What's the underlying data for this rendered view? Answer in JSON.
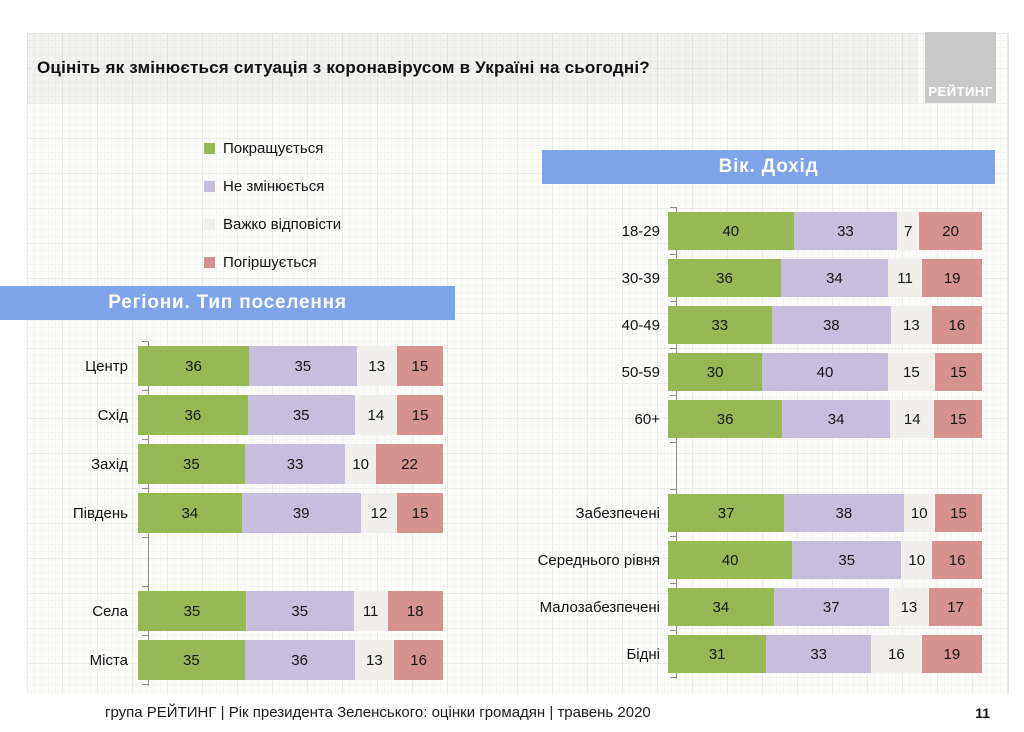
{
  "slide": {
    "title": "Оцініть як змінюється ситуація з коронавірусом в Україні на сьогодні?",
    "logo_text": "РЕЙТИНГ",
    "footer": "група РЕЙТИНГ |  Рік президента Зеленського: оцінки громадян | травень 2020",
    "page_number": "11"
  },
  "colors": {
    "improving": "#97b855",
    "no_change": "#c7bedd",
    "hard_to_answer": "#f0efeb",
    "worsening": "#d5928f",
    "banner": "#7ea4e9",
    "logo_bg": "#c9c9c9"
  },
  "legend": {
    "items": [
      {
        "label": "Покращується",
        "color_key": "improving"
      },
      {
        "label": "Не змінюється",
        "color_key": "no_change"
      },
      {
        "label": "Важко відповісти",
        "color_key": "hard_to_answer"
      },
      {
        "label": "Погіршується",
        "color_key": "worsening"
      }
    ]
  },
  "chart_data": [
    {
      "type": "bar",
      "orientation": "horizontal",
      "stacked": true,
      "units": "percent",
      "xlim": [
        0,
        100
      ],
      "grid": false,
      "title": "Регіони. Тип поселення",
      "series_names": [
        "Покращується",
        "Не змінюється",
        "Важко відповісти",
        "Погіршується"
      ],
      "series_keys": [
        "improving",
        "no-change",
        "hard-to-answer",
        "worsening"
      ],
      "rows": [
        {
          "label": "Центр",
          "values": [
            36,
            35,
            13,
            15
          ]
        },
        {
          "label": "Схід",
          "values": [
            36,
            35,
            14,
            15
          ]
        },
        {
          "label": "Захід",
          "values": [
            35,
            33,
            10,
            22
          ]
        },
        {
          "label": "Південь",
          "values": [
            34,
            39,
            12,
            15
          ]
        },
        {
          "spacer": true
        },
        {
          "label": "Села",
          "values": [
            35,
            35,
            11,
            18
          ]
        },
        {
          "label": "Міста",
          "values": [
            35,
            36,
            13,
            16
          ]
        }
      ]
    },
    {
      "type": "bar",
      "orientation": "horizontal",
      "stacked": true,
      "units": "percent",
      "xlim": [
        0,
        100
      ],
      "grid": false,
      "title": "Вік. Дохід",
      "series_names": [
        "Покращується",
        "Не змінюється",
        "Важко відповісти",
        "Погіршується"
      ],
      "series_keys": [
        "improving",
        "no-change",
        "hard-to-answer",
        "worsening"
      ],
      "rows": [
        {
          "label": "18-29",
          "values": [
            40,
            33,
            7,
            20
          ]
        },
        {
          "label": "30-39",
          "values": [
            36,
            34,
            11,
            19
          ]
        },
        {
          "label": "40-49",
          "values": [
            33,
            38,
            13,
            16
          ]
        },
        {
          "label": "50-59",
          "values": [
            30,
            40,
            15,
            15
          ]
        },
        {
          "label": "60+",
          "values": [
            36,
            34,
            14,
            15
          ]
        },
        {
          "spacer": true
        },
        {
          "label": "Забезпечені",
          "values": [
            37,
            38,
            10,
            15
          ]
        },
        {
          "label": "Середнього рівня",
          "values": [
            40,
            35,
            10,
            16
          ]
        },
        {
          "label": "Малозабезпечені",
          "values": [
            34,
            37,
            13,
            17
          ]
        },
        {
          "label": "Бідні",
          "values": [
            31,
            33,
            16,
            19
          ]
        }
      ]
    }
  ]
}
